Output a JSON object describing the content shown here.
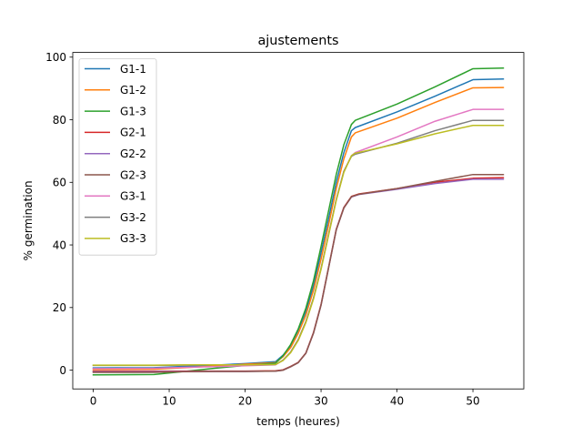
{
  "chart_data": {
    "type": "line",
    "title": "ajustements",
    "xlabel": "temps (heures)",
    "ylabel": "% germination",
    "xlim": [
      -2.7,
      56.7
    ],
    "ylim": [
      -6.0,
      101.5
    ],
    "xticks": [
      0,
      10,
      20,
      30,
      40,
      50
    ],
    "yticks": [
      0,
      20,
      40,
      60,
      80,
      100
    ],
    "grid": false,
    "legend_position": "top-left",
    "series": [
      {
        "name": "G1-1",
        "color": "#1f77b4",
        "points": [
          [
            0,
            0.7
          ],
          [
            8,
            0.8
          ],
          [
            12,
            1.2
          ],
          [
            16,
            1.6
          ],
          [
            20,
            2.1
          ],
          [
            24,
            2.7
          ],
          [
            25,
            4.8
          ],
          [
            26,
            7.8
          ],
          [
            27,
            12.8
          ],
          [
            28,
            18.8
          ],
          [
            29,
            27
          ],
          [
            30,
            37.5
          ],
          [
            31,
            48.5
          ],
          [
            32,
            60
          ],
          [
            33,
            69.5
          ],
          [
            34,
            76.5
          ],
          [
            34.5,
            77.5
          ],
          [
            40,
            82.5
          ],
          [
            45,
            87.5
          ],
          [
            50,
            92.8
          ],
          [
            54,
            93
          ]
        ]
      },
      {
        "name": "G1-2",
        "color": "#ff7f0e",
        "points": [
          [
            0,
            0.2
          ],
          [
            8,
            0.3
          ],
          [
            12,
            0.8
          ],
          [
            16,
            1.3
          ],
          [
            20,
            1.9
          ],
          [
            24,
            2.4
          ],
          [
            25,
            4.3
          ],
          [
            26,
            7.2
          ],
          [
            27,
            11.8
          ],
          [
            28,
            17.6
          ],
          [
            29,
            25.5
          ],
          [
            30,
            35.5
          ],
          [
            31,
            46.5
          ],
          [
            32,
            58
          ],
          [
            33,
            67.5
          ],
          [
            34,
            74.5
          ],
          [
            34.5,
            75.8
          ],
          [
            40,
            80.5
          ],
          [
            45,
            85.5
          ],
          [
            50,
            90.2
          ],
          [
            54,
            90.3
          ]
        ]
      },
      {
        "name": "G1-3",
        "color": "#2ca02c",
        "points": [
          [
            0,
            -1.5
          ],
          [
            8,
            -1.4
          ],
          [
            12,
            -0.4
          ],
          [
            16,
            0.6
          ],
          [
            20,
            1.5
          ],
          [
            24,
            2.2
          ],
          [
            25,
            4.6
          ],
          [
            26,
            8.2
          ],
          [
            27,
            13.2
          ],
          [
            28,
            19.8
          ],
          [
            29,
            28.5
          ],
          [
            30,
            39.5
          ],
          [
            31,
            51
          ],
          [
            32,
            62.5
          ],
          [
            33,
            72
          ],
          [
            34,
            78.5
          ],
          [
            34.5,
            79.8
          ],
          [
            40,
            85
          ],
          [
            45,
            90.5
          ],
          [
            50,
            96.3
          ],
          [
            54,
            96.5
          ]
        ]
      },
      {
        "name": "G2-1",
        "color": "#d62728",
        "points": [
          [
            0,
            -0.3
          ],
          [
            8,
            -0.3
          ],
          [
            12,
            -0.3
          ],
          [
            16,
            -0.3
          ],
          [
            20,
            -0.3
          ],
          [
            24,
            -0.2
          ],
          [
            25,
            0.1
          ],
          [
            26,
            1.2
          ],
          [
            27,
            2.5
          ],
          [
            28,
            5.5
          ],
          [
            29,
            12
          ],
          [
            30,
            21
          ],
          [
            31,
            33
          ],
          [
            32,
            45
          ],
          [
            33,
            52
          ],
          [
            34,
            55.5
          ],
          [
            35,
            56.3
          ],
          [
            40,
            58
          ],
          [
            45,
            60
          ],
          [
            50,
            61.3
          ],
          [
            54,
            61.5
          ]
        ]
      },
      {
        "name": "G2-2",
        "color": "#9467bd",
        "points": [
          [
            0,
            -0.5
          ],
          [
            8,
            -0.5
          ],
          [
            12,
            -0.4
          ],
          [
            16,
            -0.4
          ],
          [
            20,
            -0.4
          ],
          [
            24,
            -0.3
          ],
          [
            25,
            0
          ],
          [
            26,
            1.1
          ],
          [
            27,
            2.4
          ],
          [
            28,
            5.4
          ],
          [
            29,
            11.8
          ],
          [
            30,
            20.8
          ],
          [
            31,
            32.8
          ],
          [
            32,
            44.8
          ],
          [
            33,
            51.8
          ],
          [
            34,
            55.3
          ],
          [
            35,
            56.1
          ],
          [
            40,
            57.8
          ],
          [
            45,
            59.6
          ],
          [
            50,
            61
          ],
          [
            54,
            61
          ]
        ]
      },
      {
        "name": "G2-3",
        "color": "#8c564b",
        "points": [
          [
            0,
            -0.7
          ],
          [
            8,
            -0.7
          ],
          [
            12,
            -0.5
          ],
          [
            16,
            -0.4
          ],
          [
            20,
            -0.4
          ],
          [
            24,
            -0.3
          ],
          [
            25,
            0
          ],
          [
            26,
            1.1
          ],
          [
            27,
            2.4
          ],
          [
            28,
            5.4
          ],
          [
            29,
            11.8
          ],
          [
            30,
            20.8
          ],
          [
            31,
            32.8
          ],
          [
            32,
            44.8
          ],
          [
            33,
            51.8
          ],
          [
            34,
            55.4
          ],
          [
            35,
            56.2
          ],
          [
            40,
            58
          ],
          [
            45,
            60.3
          ],
          [
            50,
            62.5
          ],
          [
            54,
            62.5
          ]
        ]
      },
      {
        "name": "G3-1",
        "color": "#e377c2",
        "points": [
          [
            0,
            0.5
          ],
          [
            8,
            0.6
          ],
          [
            12,
            0.9
          ],
          [
            16,
            1.1
          ],
          [
            20,
            1.4
          ],
          [
            24,
            1.7
          ],
          [
            25,
            3.2
          ],
          [
            26,
            5.8
          ],
          [
            27,
            9.8
          ],
          [
            28,
            15.5
          ],
          [
            29,
            23
          ],
          [
            30,
            32.5
          ],
          [
            31,
            43.5
          ],
          [
            32,
            54.5
          ],
          [
            33,
            63.5
          ],
          [
            34,
            68.5
          ],
          [
            34.5,
            69.5
          ],
          [
            40,
            74.5
          ],
          [
            45,
            79.5
          ],
          [
            50,
            83.3
          ],
          [
            54,
            83.3
          ]
        ]
      },
      {
        "name": "G3-2",
        "color": "#7f7f7f",
        "points": [
          [
            0,
            1.5
          ],
          [
            8,
            1.5
          ],
          [
            12,
            1.6
          ],
          [
            16,
            1.7
          ],
          [
            20,
            1.7
          ],
          [
            24,
            1.8
          ],
          [
            25,
            3.2
          ],
          [
            26,
            5.8
          ],
          [
            27,
            9.8
          ],
          [
            28,
            15.5
          ],
          [
            29,
            23
          ],
          [
            30,
            32.5
          ],
          [
            31,
            43.5
          ],
          [
            32,
            54.5
          ],
          [
            33,
            63.5
          ],
          [
            34,
            68.3
          ],
          [
            34.5,
            69
          ],
          [
            40,
            72.5
          ],
          [
            45,
            76.5
          ],
          [
            50,
            79.8
          ],
          [
            54,
            79.8
          ]
        ]
      },
      {
        "name": "G3-3",
        "color": "#bcbd22",
        "points": [
          [
            0,
            1.6
          ],
          [
            8,
            1.6
          ],
          [
            12,
            1.7
          ],
          [
            16,
            1.7
          ],
          [
            20,
            1.7
          ],
          [
            24,
            1.8
          ],
          [
            25,
            3.1
          ],
          [
            26,
            5.6
          ],
          [
            27,
            9.5
          ],
          [
            28,
            15.2
          ],
          [
            29,
            22.7
          ],
          [
            30,
            32.2
          ],
          [
            31,
            43.2
          ],
          [
            32,
            54.2
          ],
          [
            33,
            63.2
          ],
          [
            34,
            68.5
          ],
          [
            34.5,
            69.3
          ],
          [
            40,
            72.3
          ],
          [
            45,
            75.5
          ],
          [
            50,
            78.2
          ],
          [
            54,
            78.2
          ]
        ]
      }
    ]
  }
}
